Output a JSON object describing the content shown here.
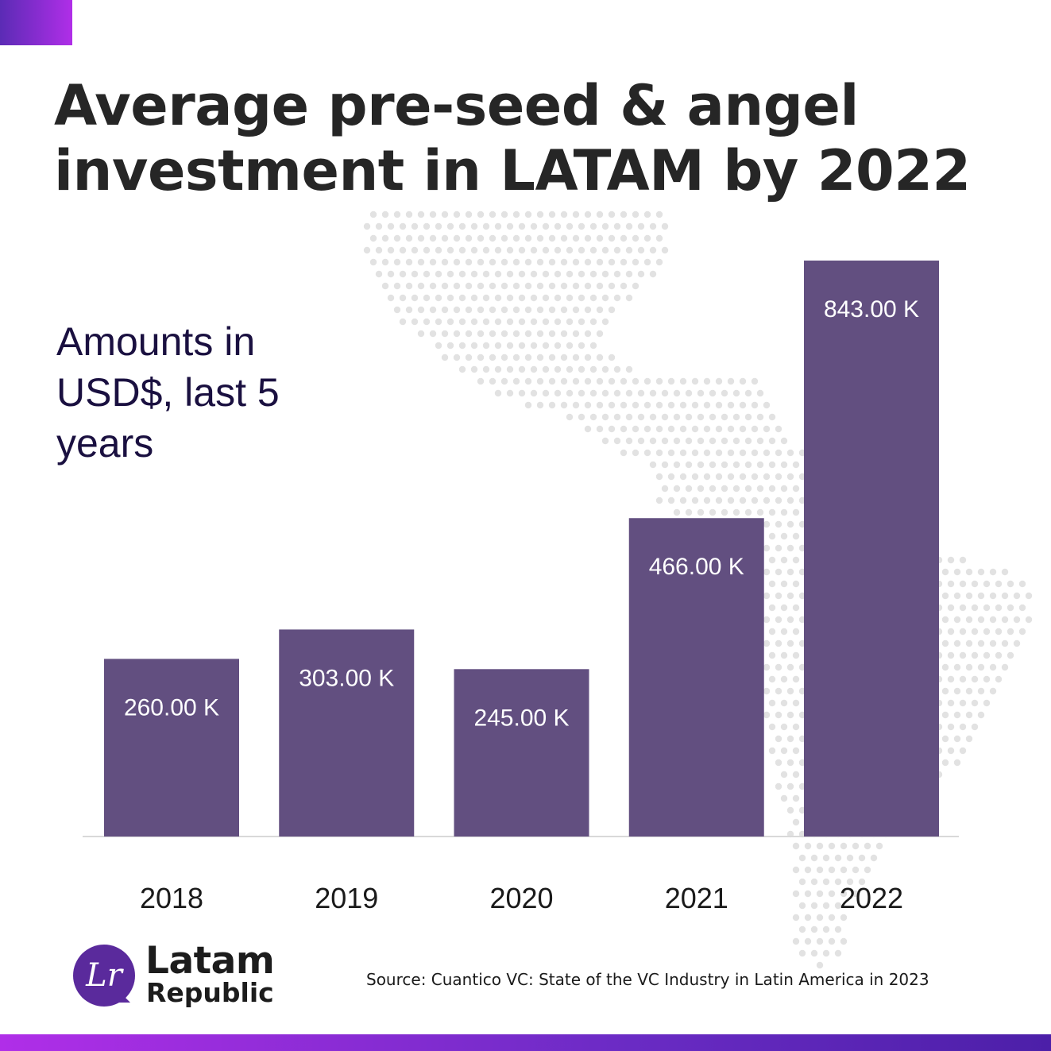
{
  "title": "Average pre-seed & angel investment in LATAM by 2022",
  "subtitle": "Amounts in USD$, last 5 years",
  "brand": {
    "line1": "Latam",
    "line2": "Republic",
    "mark": "Lr"
  },
  "source": "Source: Cuantico VC: State of the VC Industry in Latin America in 2023",
  "colors": {
    "bar": "#624f80",
    "accent": "#b02ee8",
    "accent_dark": "#4c1fa8",
    "baseline": "#d9d9d9",
    "map_dots": "#e2e2e2"
  },
  "icons": {
    "logo": "speech-bubble-logo-icon",
    "background": "latin-america-dot-map"
  },
  "chart_data": {
    "type": "bar",
    "categories": [
      "2018",
      "2019",
      "2020",
      "2021",
      "2022"
    ],
    "values": [
      260,
      303,
      245,
      466,
      843
    ],
    "value_labels": [
      "260.00 K",
      "303.00 K",
      "245.00 K",
      "466.00 K",
      "843.00 K"
    ],
    "title": "Average pre-seed & angel investment in LATAM by 2022",
    "ylabel": "",
    "xlabel": "",
    "ylim": [
      0,
      843
    ],
    "y_axis_visible": false,
    "grid": false,
    "legend": "none"
  }
}
